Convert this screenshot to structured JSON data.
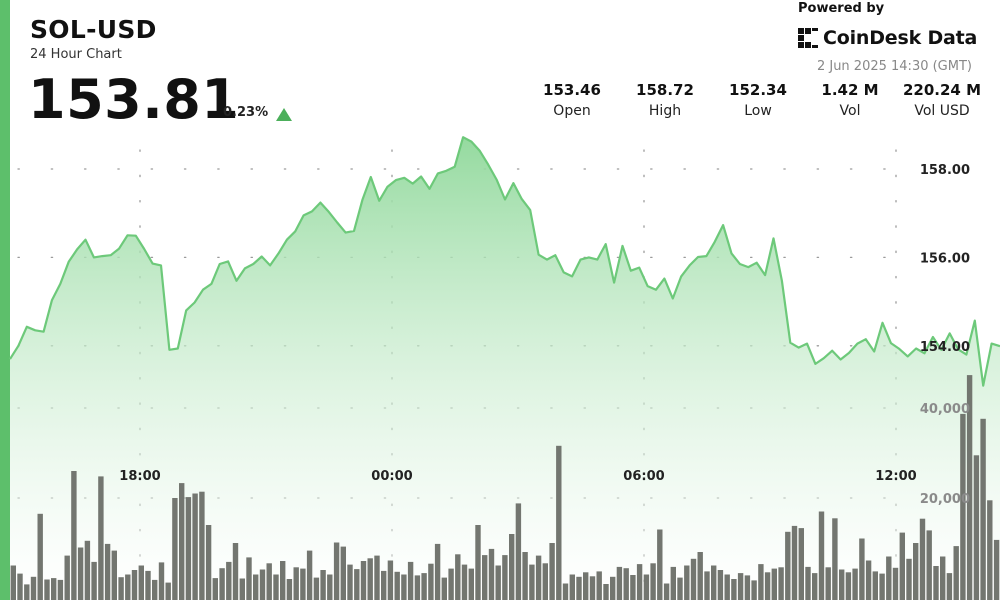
{
  "symbol": "SOL-USD",
  "subtitle": "24 Hour Chart",
  "price": "153.81",
  "change": "0.23%",
  "change_icon": "triangle-up-icon",
  "powered_by": "Powered by",
  "brand": "CoinDesk Data",
  "brand_icon": "coindesk-logo-icon",
  "timestamp": "2 Jun 2025 14:30 (GMT)",
  "stats": [
    {
      "value": "153.46",
      "label": "Open"
    },
    {
      "value": "158.72",
      "label": "High"
    },
    {
      "value": "152.34",
      "label": "Low"
    },
    {
      "value": "1.42 M",
      "label": "Vol"
    },
    {
      "value": "220.24 M",
      "label": "Vol USD"
    }
  ],
  "colors": {
    "accent": "#5dbf6b",
    "line": "#6dc97a",
    "fill_top": "#8fd89a",
    "volume_bar": "#6c6f68",
    "up": "#4caf5b"
  },
  "chart_data": [
    {
      "type": "area",
      "title": "",
      "xlabel": "",
      "ylabel": "",
      "x_tick_labels": [
        "18:00",
        "00:00",
        "06:00",
        "12:00"
      ],
      "y_tick_labels": [
        "154.00",
        "156.00",
        "158.00"
      ],
      "ylim": [
        153.5,
        158.8
      ],
      "grid": "dotted horizontal and vertical",
      "y_axis_side": "right",
      "series": [
        {
          "values": [
            153.7,
            154.0,
            154.43,
            154.35,
            154.32,
            155.03,
            155.4,
            155.9,
            156.18,
            156.4,
            156.0,
            156.03,
            156.05,
            156.2,
            156.5,
            156.49,
            156.19,
            155.86,
            155.82,
            153.91,
            153.94,
            154.8,
            154.98,
            155.27,
            155.4,
            155.85,
            155.91,
            155.47,
            155.75,
            155.85,
            156.02,
            155.82,
            156.09,
            156.4,
            156.59,
            156.95,
            157.04,
            157.24,
            157.03,
            156.79,
            156.56,
            156.6,
            157.3,
            157.82,
            157.28,
            157.6,
            157.75,
            157.8,
            157.67,
            157.83,
            157.55,
            157.9,
            157.96,
            158.05,
            158.72,
            158.62,
            158.41,
            158.1,
            157.76,
            157.31,
            157.68,
            157.32,
            157.07,
            156.06,
            155.95,
            156.05,
            155.66,
            155.57,
            155.95,
            156.0,
            155.95,
            156.3,
            155.43,
            156.26,
            155.7,
            155.77,
            155.35,
            155.27,
            155.52,
            155.07,
            155.57,
            155.82,
            156.01,
            156.03,
            156.35,
            156.73,
            156.09,
            155.85,
            155.78,
            155.88,
            155.6,
            156.43,
            155.47,
            154.07,
            153.96,
            154.05,
            153.59,
            153.72,
            153.89,
            153.69,
            153.84,
            154.05,
            154.15,
            153.87,
            154.52,
            154.06,
            153.93,
            153.76,
            153.94,
            153.83,
            154.2,
            153.91,
            154.28,
            153.92,
            153.8,
            154.57,
            153.1,
            154.05,
            153.99
          ]
        }
      ]
    },
    {
      "type": "bar",
      "title": "",
      "xlabel": "",
      "ylabel": "",
      "y_tick_labels": [
        "20,000",
        "40,000"
      ],
      "ylim": [
        0,
        55000
      ],
      "series": [
        {
          "values": [
            5000,
            3200,
            800,
            2500,
            16500,
            1900,
            2200,
            1800,
            7200,
            26000,
            9000,
            10500,
            5800,
            24800,
            9800,
            8300,
            2400,
            3000,
            4000,
            5000,
            3800,
            1800,
            5700,
            1200,
            20000,
            23300,
            20200,
            21000,
            21400,
            14000,
            2200,
            4400,
            5800,
            10000,
            2100,
            6800,
            3000,
            4100,
            5500,
            3000,
            6000,
            2000,
            4600,
            4300,
            8300,
            2300,
            4000,
            3000,
            10100,
            9200,
            5200,
            4200,
            6000,
            6600,
            7200,
            3800,
            6100,
            3600,
            3000,
            5800,
            2800,
            3300,
            5400,
            9800,
            2300,
            4300,
            7500,
            5200,
            4300,
            14000,
            7300,
            8700,
            5000,
            7300,
            12000,
            18800,
            8000,
            5200,
            7200,
            5500,
            10000,
            31600,
            1000,
            3000,
            2500,
            3500,
            2600,
            3700,
            900,
            2500,
            4700,
            4400,
            2900,
            5300,
            3000,
            5500,
            13000,
            1000,
            4700,
            2300,
            5000,
            6500,
            8000,
            3700,
            5000,
            4000,
            3000,
            2000,
            3300,
            2800,
            1700,
            5300,
            3500,
            4300,
            4600,
            12500,
            13800,
            13300,
            4700,
            3300,
            17000,
            4600,
            15500,
            4100,
            3500,
            4300,
            11000,
            6100,
            3700,
            3200,
            7000,
            4500,
            12300,
            6500,
            10000,
            15400,
            12800,
            4900,
            7000,
            3300,
            9300,
            38700,
            47300,
            29500,
            37600,
            19500,
            10700
          ]
        }
      ]
    }
  ]
}
